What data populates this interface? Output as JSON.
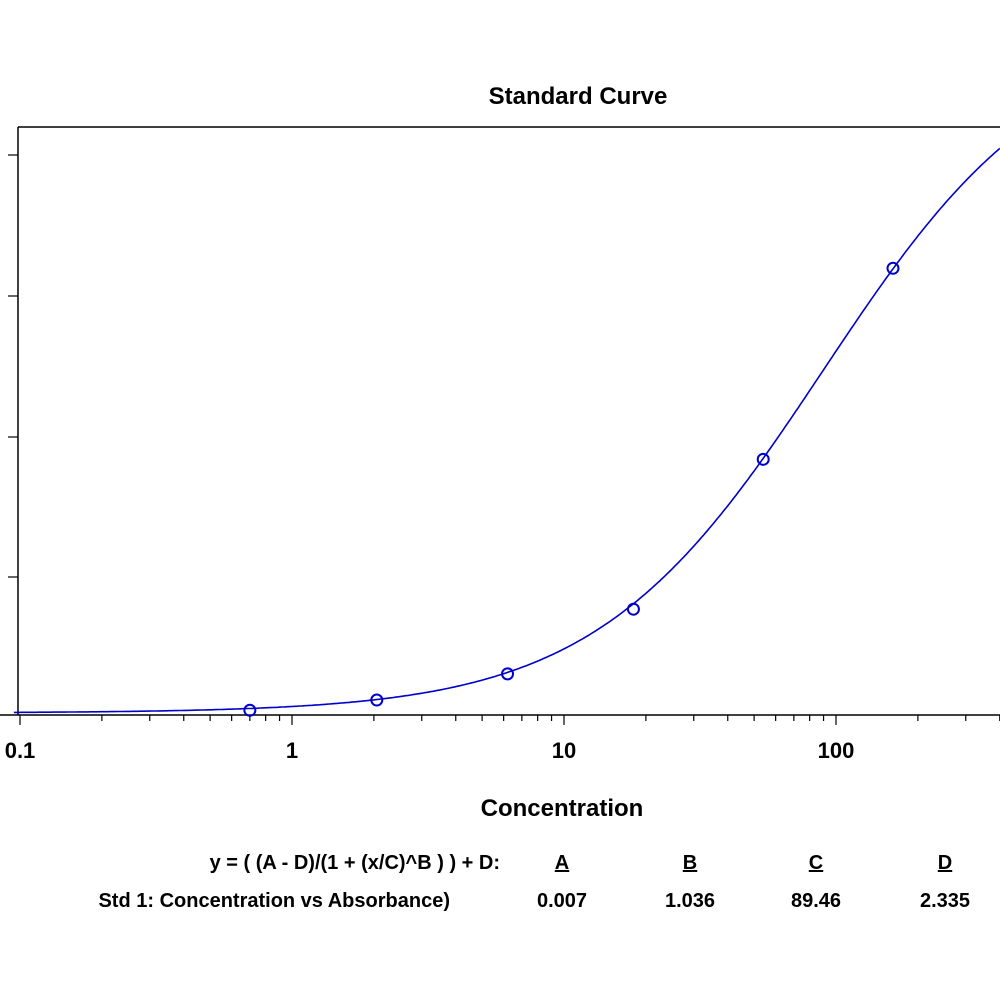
{
  "colors": {
    "curve": "#0000cc",
    "axis": "#000000",
    "background": "#ffffff"
  },
  "chart_data": {
    "type": "scatter",
    "title": "Standard Curve",
    "xlabel": "Concentration",
    "ylabel": "",
    "xscale": "log",
    "xlim": [
      0.1,
      400
    ],
    "ylim": [
      0,
      2.0
    ],
    "grid": false,
    "x_tick_labels": [
      "0.1",
      "1",
      "10",
      "100"
    ],
    "series": [
      {
        "points": [
          {
            "x": 0.7,
            "y": 0.016
          },
          {
            "x": 2.05,
            "y": 0.051
          },
          {
            "x": 6.2,
            "y": 0.14
          },
          {
            "x": 18,
            "y": 0.36
          },
          {
            "x": 54,
            "y": 0.87
          },
          {
            "x": 162,
            "y": 1.52
          }
        ],
        "fit": {
          "equation": "y = ( (A - D)/(1 + (x/C)^B ) ) + D:",
          "A": 0.007,
          "B": 1.036,
          "C": 89.46,
          "D": 2.335
        }
      }
    ]
  },
  "table": {
    "equation": "y = ( (A - D)/(1 + (x/C)^B ) ) + D:",
    "headers": [
      "A",
      "B",
      "C",
      "D"
    ],
    "row_label": "Std 1: Concentration vs Absorbance)",
    "values": [
      "0.007",
      "1.036",
      "89.46",
      "2.335"
    ]
  }
}
